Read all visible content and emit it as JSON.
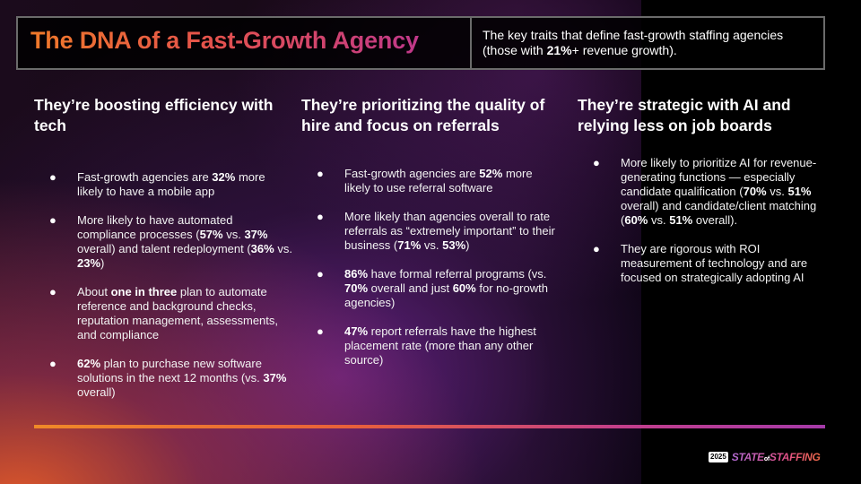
{
  "header": {
    "title": "The DNA of a Fast-Growth Agency",
    "subtitle_parts": [
      "The key traits that define fast-growth staffing agencies (those with ",
      "21%",
      "+ revenue growth)."
    ]
  },
  "columns": [
    {
      "heading": "They’re boosting efficiency with tech",
      "items": [
        [
          [
            "Fast-growth agencies are ",
            false
          ],
          [
            "32%",
            true
          ],
          [
            " more likely to have a mobile app",
            false
          ]
        ],
        [
          [
            "More likely to have automated compliance processes (",
            false
          ],
          [
            "57%",
            true
          ],
          [
            " vs. ",
            false
          ],
          [
            "37%",
            true
          ],
          [
            " overall) and talent redeployment (",
            false
          ],
          [
            "36%",
            true
          ],
          [
            " vs. ",
            false
          ],
          [
            "23%",
            true
          ],
          [
            ")",
            false
          ]
        ],
        [
          [
            "About ",
            false
          ],
          [
            "one in three",
            true
          ],
          [
            " plan to automate reference and background checks, reputation management, assessments, and compliance",
            false
          ]
        ],
        [
          [
            "62%",
            true
          ],
          [
            " plan to purchase new software solutions in the next 12 months (vs. ",
            false
          ],
          [
            "37%",
            true
          ],
          [
            " overall)",
            false
          ]
        ]
      ]
    },
    {
      "heading": "They’re prioritizing the quality of hire and focus on referrals",
      "items": [
        [
          [
            "Fast-growth agencies are ",
            false
          ],
          [
            "52%",
            true
          ],
          [
            " more likely to use referral software",
            false
          ]
        ],
        [
          [
            "More likely than agencies overall to rate referrals as “extremely important” to their business (",
            false
          ],
          [
            "71%",
            true
          ],
          [
            " vs. ",
            false
          ],
          [
            "53%",
            true
          ],
          [
            ")",
            false
          ]
        ],
        [
          [
            "86%",
            true
          ],
          [
            " have formal referral programs (vs. ",
            false
          ],
          [
            "70%",
            true
          ],
          [
            " overall and just ",
            false
          ],
          [
            "60%",
            true
          ],
          [
            " for no-growth agencies)",
            false
          ]
        ],
        [
          [
            "47%",
            true
          ],
          [
            " report referrals have the highest placement rate (more than any other source)",
            false
          ]
        ]
      ]
    },
    {
      "heading": "They’re strategic with AI and relying less on job boards",
      "items": [
        [
          [
            "More likely to prioritize AI for revenue-generating functions — especially candidate qualification (",
            false
          ],
          [
            "70%",
            true
          ],
          [
            " vs. ",
            false
          ],
          [
            "51%",
            true
          ],
          [
            " overall) and candidate/client matching (",
            false
          ],
          [
            "60%",
            true
          ],
          [
            " vs. ",
            false
          ],
          [
            "51%",
            true
          ],
          [
            " overall).",
            false
          ]
        ],
        [
          [
            "They are rigorous with ROI measurement of technology and are focused on strategically adopting AI",
            false
          ]
        ]
      ]
    }
  ],
  "bullet_glyph": "●",
  "footer": {
    "year": "2025",
    "brand_left": "STATE",
    "brand_of": "of",
    "brand_right": "STAFFING"
  },
  "colors": {
    "title_gradient": [
      "#f07a2a",
      "#e5534b",
      "#c0388a"
    ],
    "bar_gradient": [
      "#f08a28",
      "#e8603a",
      "#c23e8c",
      "#a43aa8"
    ],
    "border": "#6b6b6b"
  }
}
